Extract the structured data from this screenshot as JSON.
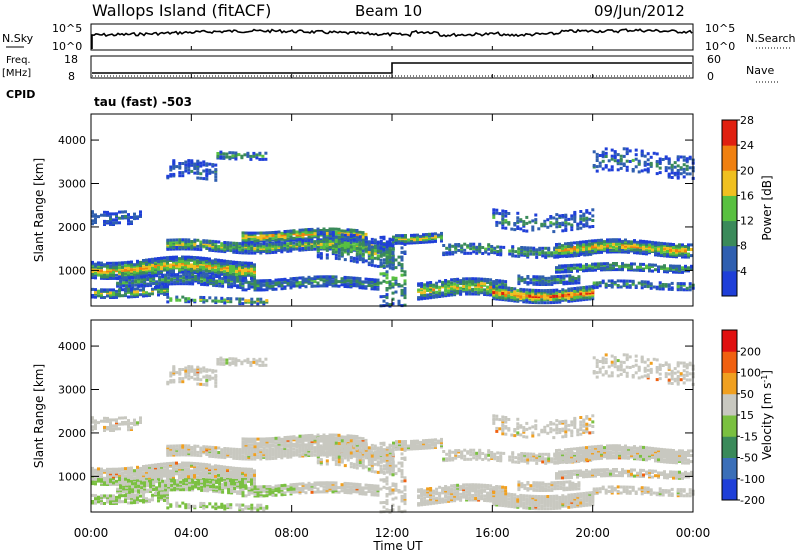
{
  "header": {
    "station": "Wallops Island (fitACF)",
    "beam": "Beam 10",
    "date": "09/Jun/2012"
  },
  "status_panels": {
    "nsky_label": "N.Sky",
    "nsky_ticks": [
      "10^5",
      "10^0"
    ],
    "nsearch_label": "N.Search",
    "nsearch_ticks": [
      "10^5",
      "10^0"
    ],
    "freq_label_1": "Freq.",
    "freq_label_2": "[MHz]",
    "freq_ticks": [
      "18",
      "8"
    ],
    "nave_label": "Nave",
    "nave_ticks": [
      "60",
      "0"
    ],
    "cpid_label": "CPID",
    "cpid_value": "tau (fast) -503"
  },
  "chart_data": [
    {
      "type": "heatmap",
      "name": "power",
      "ylabel": "Slant Range [km]",
      "yticks": [
        "1000",
        "2000",
        "3000",
        "4000"
      ],
      "colorbar_label": "Power [dB]",
      "colorbar_ticks": [
        "4",
        "8",
        "12",
        "16",
        "20",
        "24",
        "28"
      ],
      "colors": [
        "#1f3fd8",
        "#2f5fb0",
        "#3a8a5a",
        "#58c040",
        "#f0c020",
        "#f08010",
        "#e02010"
      ]
    },
    {
      "type": "heatmap",
      "name": "velocity",
      "ylabel": "Slant Range [km]",
      "yticks": [
        "1000",
        "2000",
        "3000",
        "4000"
      ],
      "xlabel": "Time UT",
      "xticks": [
        "00:00",
        "04:00",
        "08:00",
        "12:00",
        "16:00",
        "20:00",
        "00:00"
      ],
      "colorbar_label": "Velocity [m s^-1]",
      "colorbar_ticks": [
        "200",
        "100",
        "50",
        "15",
        "-15",
        "-50",
        "-100",
        "-200"
      ],
      "colors": [
        "#1f3fd8",
        "#3b6fb8",
        "#3a8a5a",
        "#7ac040",
        "#c8c8c0",
        "#f0a020",
        "#f06010",
        "#e01010"
      ]
    }
  ]
}
